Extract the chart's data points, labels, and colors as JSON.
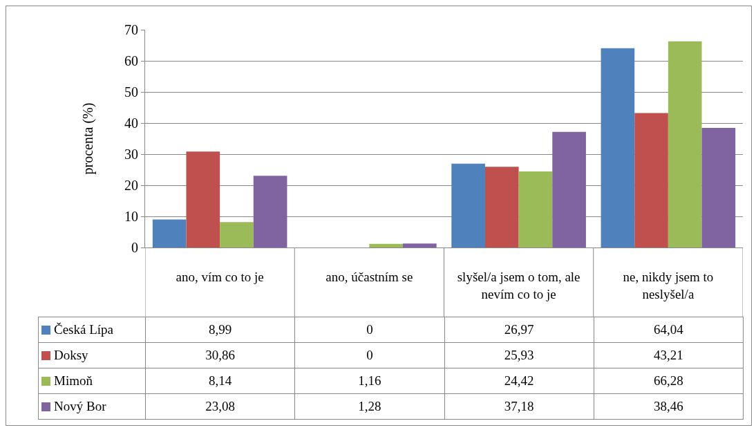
{
  "chart_data": {
    "type": "bar",
    "ylabel": "procenta (%)",
    "categories": [
      "ano, vím co to je",
      "ano, účastním se",
      "slyšel/a jsem o tom, ale nevím co to je",
      "ne, nikdy jsem to neslyšel/a"
    ],
    "series": [
      {
        "name": "Česká Lípa",
        "color": "#4f81bd",
        "values": [
          8.99,
          0,
          26.97,
          64.04
        ],
        "value_labels": [
          "8,99",
          "0",
          "26,97",
          "64,04"
        ]
      },
      {
        "name": "Doksy",
        "color": "#c0504d",
        "values": [
          30.86,
          0,
          25.93,
          43.21
        ],
        "value_labels": [
          "30,86",
          "0",
          "25,93",
          "43,21"
        ]
      },
      {
        "name": "Mimoň",
        "color": "#9bbb59",
        "values": [
          8.14,
          1.16,
          24.42,
          66.28
        ],
        "value_labels": [
          "8,14",
          "1,16",
          "24,42",
          "66,28"
        ]
      },
      {
        "name": "Nový Bor",
        "color": "#8064a2",
        "values": [
          23.08,
          1.28,
          37.18,
          38.46
        ],
        "value_labels": [
          "23,08",
          "1,28",
          "37,18",
          "38,46"
        ]
      }
    ],
    "ylim": [
      0,
      70
    ],
    "yticks": [
      0,
      10,
      20,
      30,
      40,
      50,
      60,
      70
    ],
    "grid": "y",
    "legend": "bottom left"
  }
}
